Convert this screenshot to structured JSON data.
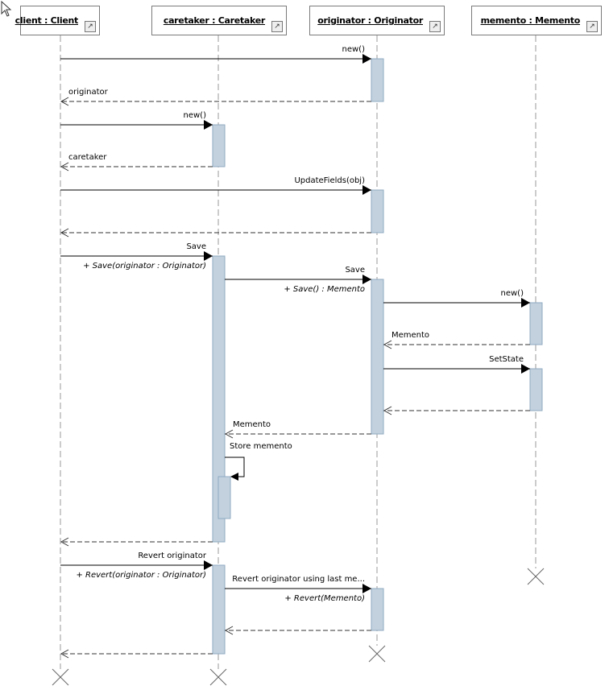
{
  "lifelines": [
    {
      "label": "client : Client"
    },
    {
      "label": "caretaker : Caretaker"
    },
    {
      "label": "originator : Originator"
    },
    {
      "label": "memento : Memento"
    }
  ],
  "messages": [
    {
      "from": 0,
      "to": 2,
      "label": "new()",
      "kind": "call"
    },
    {
      "from": 2,
      "to": 0,
      "label": "originator",
      "kind": "return"
    },
    {
      "from": 0,
      "to": 1,
      "label": "new()",
      "kind": "call"
    },
    {
      "from": 1,
      "to": 0,
      "label": "caretaker",
      "kind": "return"
    },
    {
      "from": 0,
      "to": 2,
      "label": "UpdateFields(obj)",
      "kind": "call"
    },
    {
      "from": 2,
      "to": 0,
      "label": "",
      "kind": "return"
    },
    {
      "from": 0,
      "to": 1,
      "label": "Save",
      "signature": "+ Save(originator : Originator)",
      "kind": "call"
    },
    {
      "from": 1,
      "to": 2,
      "label": "Save",
      "signature": "+ Save() : Memento",
      "kind": "call"
    },
    {
      "from": 2,
      "to": 3,
      "label": "new()",
      "kind": "call"
    },
    {
      "from": 3,
      "to": 2,
      "label": "Memento",
      "kind": "return"
    },
    {
      "from": 2,
      "to": 3,
      "label": "SetState",
      "kind": "call"
    },
    {
      "from": 3,
      "to": 2,
      "label": "",
      "kind": "return"
    },
    {
      "from": 2,
      "to": 1,
      "label": "Memento",
      "kind": "return"
    },
    {
      "from": 1,
      "to": 1,
      "label": "Store memento",
      "kind": "self"
    },
    {
      "from": 1,
      "to": 0,
      "label": "",
      "kind": "return"
    },
    {
      "from": 0,
      "to": 1,
      "label": "Revert originator",
      "signature": "+ Revert(originator : Originator)",
      "kind": "call"
    },
    {
      "from": 1,
      "to": 2,
      "label": "Revert originator using last me...",
      "signature": "+ Revert(Memento)",
      "kind": "call"
    },
    {
      "from": 2,
      "to": 1,
      "label": "",
      "kind": "return"
    },
    {
      "from": 1,
      "to": 0,
      "label": "",
      "kind": "return"
    }
  ],
  "icons": {
    "header_link": "shortcut-arrow-icon",
    "cursor": "mouse-pointer-icon",
    "destroy": "destroy-x-icon"
  },
  "colors": {
    "activation_fill": "#c3d1de",
    "activation_border": "#8faac2",
    "lifeline": "#9a9a9a"
  }
}
